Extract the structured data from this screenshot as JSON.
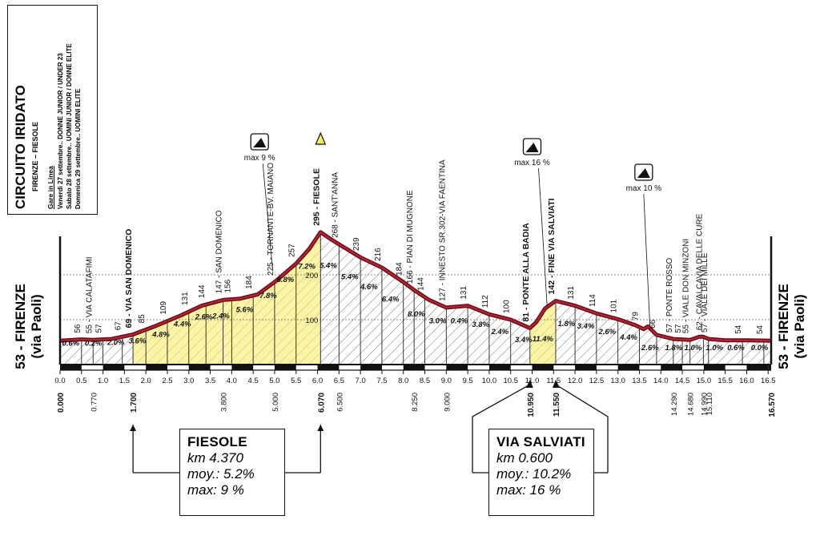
{
  "info": {
    "title": "CIRCUITO IRIDATO",
    "subtitle": "FIRENZE – FIESOLE",
    "heading": "Gare in Linea",
    "lines": [
      "Venerdì 27 settembre.. DONNE JUNIOR / UNDER 23",
      "Sabato 28 settembre.. UOMINI JUNIOR / DONNE ELITE",
      "Domenica 29 settembre.. UOMINI ELITE"
    ]
  },
  "end_labels": {
    "left": "53 - FIRENZE",
    "left_sub": "(via Paoli)",
    "right": "53 - FIRENZE",
    "right_sub": "(via Paoli)"
  },
  "chart_data": {
    "type": "area",
    "title": "",
    "xlabel": "",
    "ylabel": "",
    "xlim": [
      0,
      16.57
    ],
    "ylim": [
      0,
      320
    ],
    "grid_lines_y": [
      100,
      200
    ],
    "grid_labels": [
      "100",
      "200"
    ],
    "x_ticks": [
      "0.0",
      "0.5",
      "1.0",
      "1.5",
      "2.0",
      "2.5",
      "3.0",
      "3.5",
      "4.0",
      "4.5",
      "5.0",
      "5.5",
      "6.0",
      "6.5",
      "7.0",
      "7.5",
      "8.0",
      "8.5",
      "9.0",
      "9.5",
      "10.0",
      "10.5",
      "11.0",
      "11.5",
      "12.0",
      "12.5",
      "13.0",
      "13.5",
      "14.0",
      "14.5",
      "15.0",
      "15.5",
      "16.0",
      "16.5"
    ],
    "profile": {
      "x": [
        0,
        0.5,
        0.77,
        1.2,
        1.7,
        2.2,
        2.8,
        3.3,
        3.8,
        4.2,
        4.6,
        5.0,
        5.5,
        5.8,
        6.07,
        6.3,
        6.5,
        7.0,
        7.5,
        8.0,
        8.25,
        8.6,
        9.0,
        9.5,
        10.0,
        10.5,
        10.95,
        11.1,
        11.3,
        11.55,
        12.0,
        12.5,
        13.0,
        13.4,
        13.6,
        13.7,
        13.9,
        14.29,
        14.68,
        14.9,
        14.99,
        15.11,
        15.5,
        16.0,
        16.57
      ],
      "y": [
        53,
        56,
        55,
        57,
        67,
        85,
        109,
        131,
        144,
        147,
        156,
        184,
        225,
        257,
        295,
        280,
        268,
        239,
        216,
        184,
        166,
        144,
        127,
        131,
        112,
        100,
        81,
        95,
        125,
        142,
        131,
        114,
        101,
        88,
        79,
        85,
        66,
        57,
        55,
        62,
        62,
        57,
        54,
        54,
        53
      ]
    },
    "elevation_labels": [
      {
        "x": 0.5,
        "text": "56"
      },
      {
        "x": 0.77,
        "text": "55 - VIA CALATAFIMI"
      },
      {
        "x": 1.0,
        "text": "57"
      },
      {
        "x": 1.45,
        "text": "67"
      },
      {
        "x": 1.7,
        "text": "69 - VIA SAN DOMENICO",
        "bold": true
      },
      {
        "x": 2.0,
        "text": "85"
      },
      {
        "x": 2.5,
        "text": "109"
      },
      {
        "x": 3.0,
        "text": "131"
      },
      {
        "x": 3.4,
        "text": "144"
      },
      {
        "x": 3.8,
        "text": "147 - SAN DOMENICO"
      },
      {
        "x": 4.0,
        "text": "156"
      },
      {
        "x": 4.5,
        "text": "184"
      },
      {
        "x": 5.0,
        "text": "225 - TORNANTE-BV. MAIANO"
      },
      {
        "x": 5.5,
        "text": "257"
      },
      {
        "x": 6.07,
        "text": "295 - FIESOLE",
        "bold": true
      },
      {
        "x": 6.5,
        "text": "268 - SANT'ANNA"
      },
      {
        "x": 7.0,
        "text": "239"
      },
      {
        "x": 7.5,
        "text": "216"
      },
      {
        "x": 8.0,
        "text": "184"
      },
      {
        "x": 8.25,
        "text": "166 - PIAN DI MUGNONE"
      },
      {
        "x": 8.5,
        "text": "144"
      },
      {
        "x": 9.0,
        "text": "127 - INNESTO SR.302-VIA FAENTINA"
      },
      {
        "x": 9.5,
        "text": "131"
      },
      {
        "x": 10.0,
        "text": "112"
      },
      {
        "x": 10.5,
        "text": "100"
      },
      {
        "x": 10.95,
        "text": "81 - PONTE ALLA BADIA",
        "bold": true
      },
      {
        "x": 11.55,
        "text": "142 - FINE VIA SALVIATI",
        "bold": true
      },
      {
        "x": 12.0,
        "text": "131"
      },
      {
        "x": 12.5,
        "text": "114"
      },
      {
        "x": 13.0,
        "text": "101"
      },
      {
        "x": 13.5,
        "text": "79"
      },
      {
        "x": 13.9,
        "text": "66"
      },
      {
        "x": 14.29,
        "text": "57 - PONTE ROSSO"
      },
      {
        "x": 14.5,
        "text": "57"
      },
      {
        "x": 14.68,
        "text": "55 - VIALE DON MINZONI"
      },
      {
        "x": 14.99,
        "text": "62 - CAVALCAVIA DELLE CURE"
      },
      {
        "x": 15.11,
        "text": "57 - VIALE DEI MILLE"
      },
      {
        "x": 15.9,
        "text": "54"
      },
      {
        "x": 16.4,
        "text": "54"
      }
    ],
    "gradients": [
      {
        "x": 0.25,
        "y": 42,
        "text": "0.6%"
      },
      {
        "x": 0.78,
        "y": 42,
        "text": "0.2%"
      },
      {
        "x": 1.3,
        "y": 44,
        "text": "2.0%"
      },
      {
        "x": 1.8,
        "y": 47,
        "text": "3.6%"
      },
      {
        "x": 2.35,
        "y": 62,
        "text": "4.8%"
      },
      {
        "x": 2.85,
        "y": 85,
        "text": "4.4%"
      },
      {
        "x": 3.35,
        "y": 101,
        "text": "2.6%"
      },
      {
        "x": 3.75,
        "y": 103,
        "text": "2.4%"
      },
      {
        "x": 4.3,
        "y": 117,
        "text": "5.6%"
      },
      {
        "x": 4.85,
        "y": 148,
        "text": "7.8%"
      },
      {
        "x": 5.25,
        "y": 184,
        "text": "6.8%"
      },
      {
        "x": 5.75,
        "y": 213,
        "text": "7.2%"
      },
      {
        "x": 6.25,
        "y": 215,
        "text": "5.4%"
      },
      {
        "x": 6.75,
        "y": 190,
        "text": "5.4%"
      },
      {
        "x": 7.2,
        "y": 168,
        "text": "4.6%"
      },
      {
        "x": 7.7,
        "y": 140,
        "text": "6.4%"
      },
      {
        "x": 8.3,
        "y": 107,
        "text": "8.0%"
      },
      {
        "x": 8.8,
        "y": 92,
        "text": "3.0%"
      },
      {
        "x": 9.3,
        "y": 92,
        "text": "0.4%"
      },
      {
        "x": 9.8,
        "y": 84,
        "text": "3.8%"
      },
      {
        "x": 10.25,
        "y": 68,
        "text": "2.4%"
      },
      {
        "x": 10.8,
        "y": 50,
        "text": "3.4%"
      },
      {
        "x": 11.25,
        "y": 52,
        "text": "11.4%"
      },
      {
        "x": 11.8,
        "y": 86,
        "text": "1.8%"
      },
      {
        "x": 12.25,
        "y": 80,
        "text": "3.4%"
      },
      {
        "x": 12.75,
        "y": 68,
        "text": "2.6%"
      },
      {
        "x": 13.25,
        "y": 55,
        "text": "4.4%"
      },
      {
        "x": 13.75,
        "y": 32,
        "text": "2.6%"
      },
      {
        "x": 14.3,
        "y": 32,
        "text": "1.8%"
      },
      {
        "x": 14.75,
        "y": 32,
        "text": "1.0%"
      },
      {
        "x": 15.25,
        "y": 32,
        "text": "1.0%"
      },
      {
        "x": 15.75,
        "y": 32,
        "text": "0.6%"
      },
      {
        "x": 16.3,
        "y": 32,
        "text": "0.0%"
      }
    ],
    "km_markers": [
      {
        "x": 0.0,
        "text": "0.000",
        "bold": true
      },
      {
        "x": 0.77,
        "text": "0.770"
      },
      {
        "x": 1.7,
        "text": "1.700",
        "bold": true
      },
      {
        "x": 3.8,
        "text": "3.800"
      },
      {
        "x": 5.0,
        "text": "5.000"
      },
      {
        "x": 6.07,
        "text": "6.070",
        "bold": true
      },
      {
        "x": 6.5,
        "text": "6.500"
      },
      {
        "x": 8.25,
        "text": "8.250"
      },
      {
        "x": 9.0,
        "text": "9.000"
      },
      {
        "x": 10.95,
        "text": "10.950",
        "bold": true
      },
      {
        "x": 11.55,
        "text": "11.550",
        "bold": true
      },
      {
        "x": 14.29,
        "text": "14.290"
      },
      {
        "x": 14.68,
        "text": "14.680"
      },
      {
        "x": 14.99,
        "text": "14.990"
      },
      {
        "x": 15.11,
        "text": "15.110"
      },
      {
        "x": 16.57,
        "text": "16.570",
        "bold": true
      }
    ],
    "climbs": [
      {
        "x0": 1.7,
        "x1": 6.07,
        "color": "#fbf4a4",
        "max_icon_x": 4.65,
        "max_label": "max 9 %",
        "summit_label": "",
        "box": {
          "name": "FIESOLE",
          "lines": [
            "km 4.370",
            "moy.: 5.2%",
            "max: 9 %"
          ]
        }
      },
      {
        "x0": 10.95,
        "x1": 11.55,
        "color": "#fbf4a4",
        "max_icon_x": 11.0,
        "max_label": "max 16 %",
        "box": {
          "name": "VIA SALVIATI",
          "lines": [
            "km 0.600",
            "moy.: 10.2%",
            "max: 16 %"
          ]
        }
      }
    ],
    "extra_max": {
      "x": 13.6,
      "text": "max 10 %"
    }
  }
}
